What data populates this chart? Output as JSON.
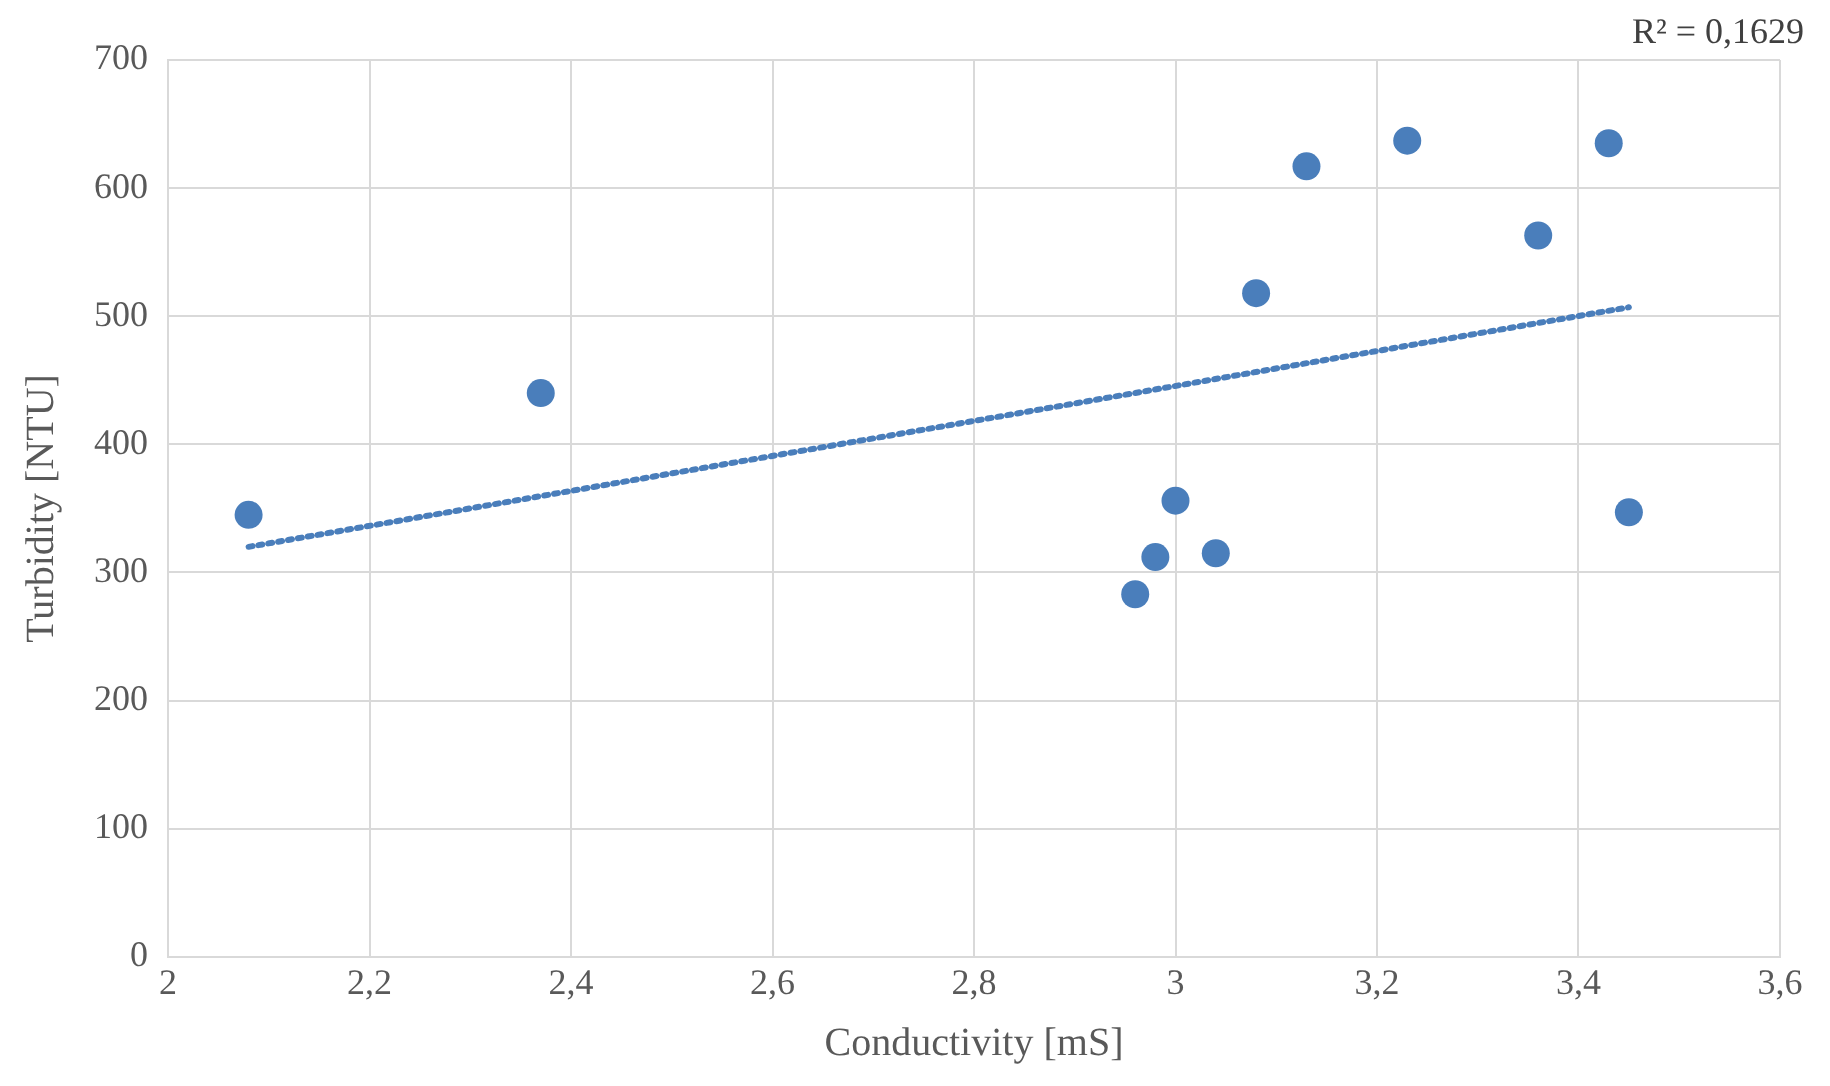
{
  "chart_data": {
    "type": "scatter",
    "xlabel": "Conductivity [mS]",
    "ylabel": "Turbidity [NTU]",
    "annotations": [
      "R² = 0,1629"
    ],
    "xlim": [
      2,
      3.6
    ],
    "xticks": [
      2,
      {
        "value": 2.2,
        "label": "2,2"
      },
      {
        "value": 2.4,
        "label": "2,4"
      },
      {
        "value": 2.6,
        "label": "2,6"
      },
      {
        "value": 2.8,
        "label": "2,8"
      },
      3,
      {
        "value": 3.2,
        "label": "3,2"
      },
      {
        "value": 3.4,
        "label": "3,4"
      },
      {
        "value": 3.6,
        "label": "3,6"
      }
    ],
    "ylim": [
      0,
      700
    ],
    "yticks": [
      0,
      100,
      200,
      300,
      400,
      500,
      600,
      700
    ],
    "grid": true,
    "legend": false,
    "marker": "circle",
    "series": [
      {
        "color": "#4a7ebb",
        "x": [
          2.08,
          2.37,
          2.96,
          2.98,
          3.0,
          3.04,
          3.08,
          3.13,
          3.23,
          3.36,
          3.43,
          3.45
        ],
        "values": [
          345,
          440,
          283,
          312,
          356,
          315,
          518,
          617,
          637,
          563,
          635,
          347
        ]
      },
      {
        "type": "line",
        "color": "#4a7ebb",
        "line_style": "dotted",
        "marker": "none",
        "x": [
          2.08,
          3.45
        ],
        "values": [
          320,
          507
        ]
      }
    ]
  }
}
